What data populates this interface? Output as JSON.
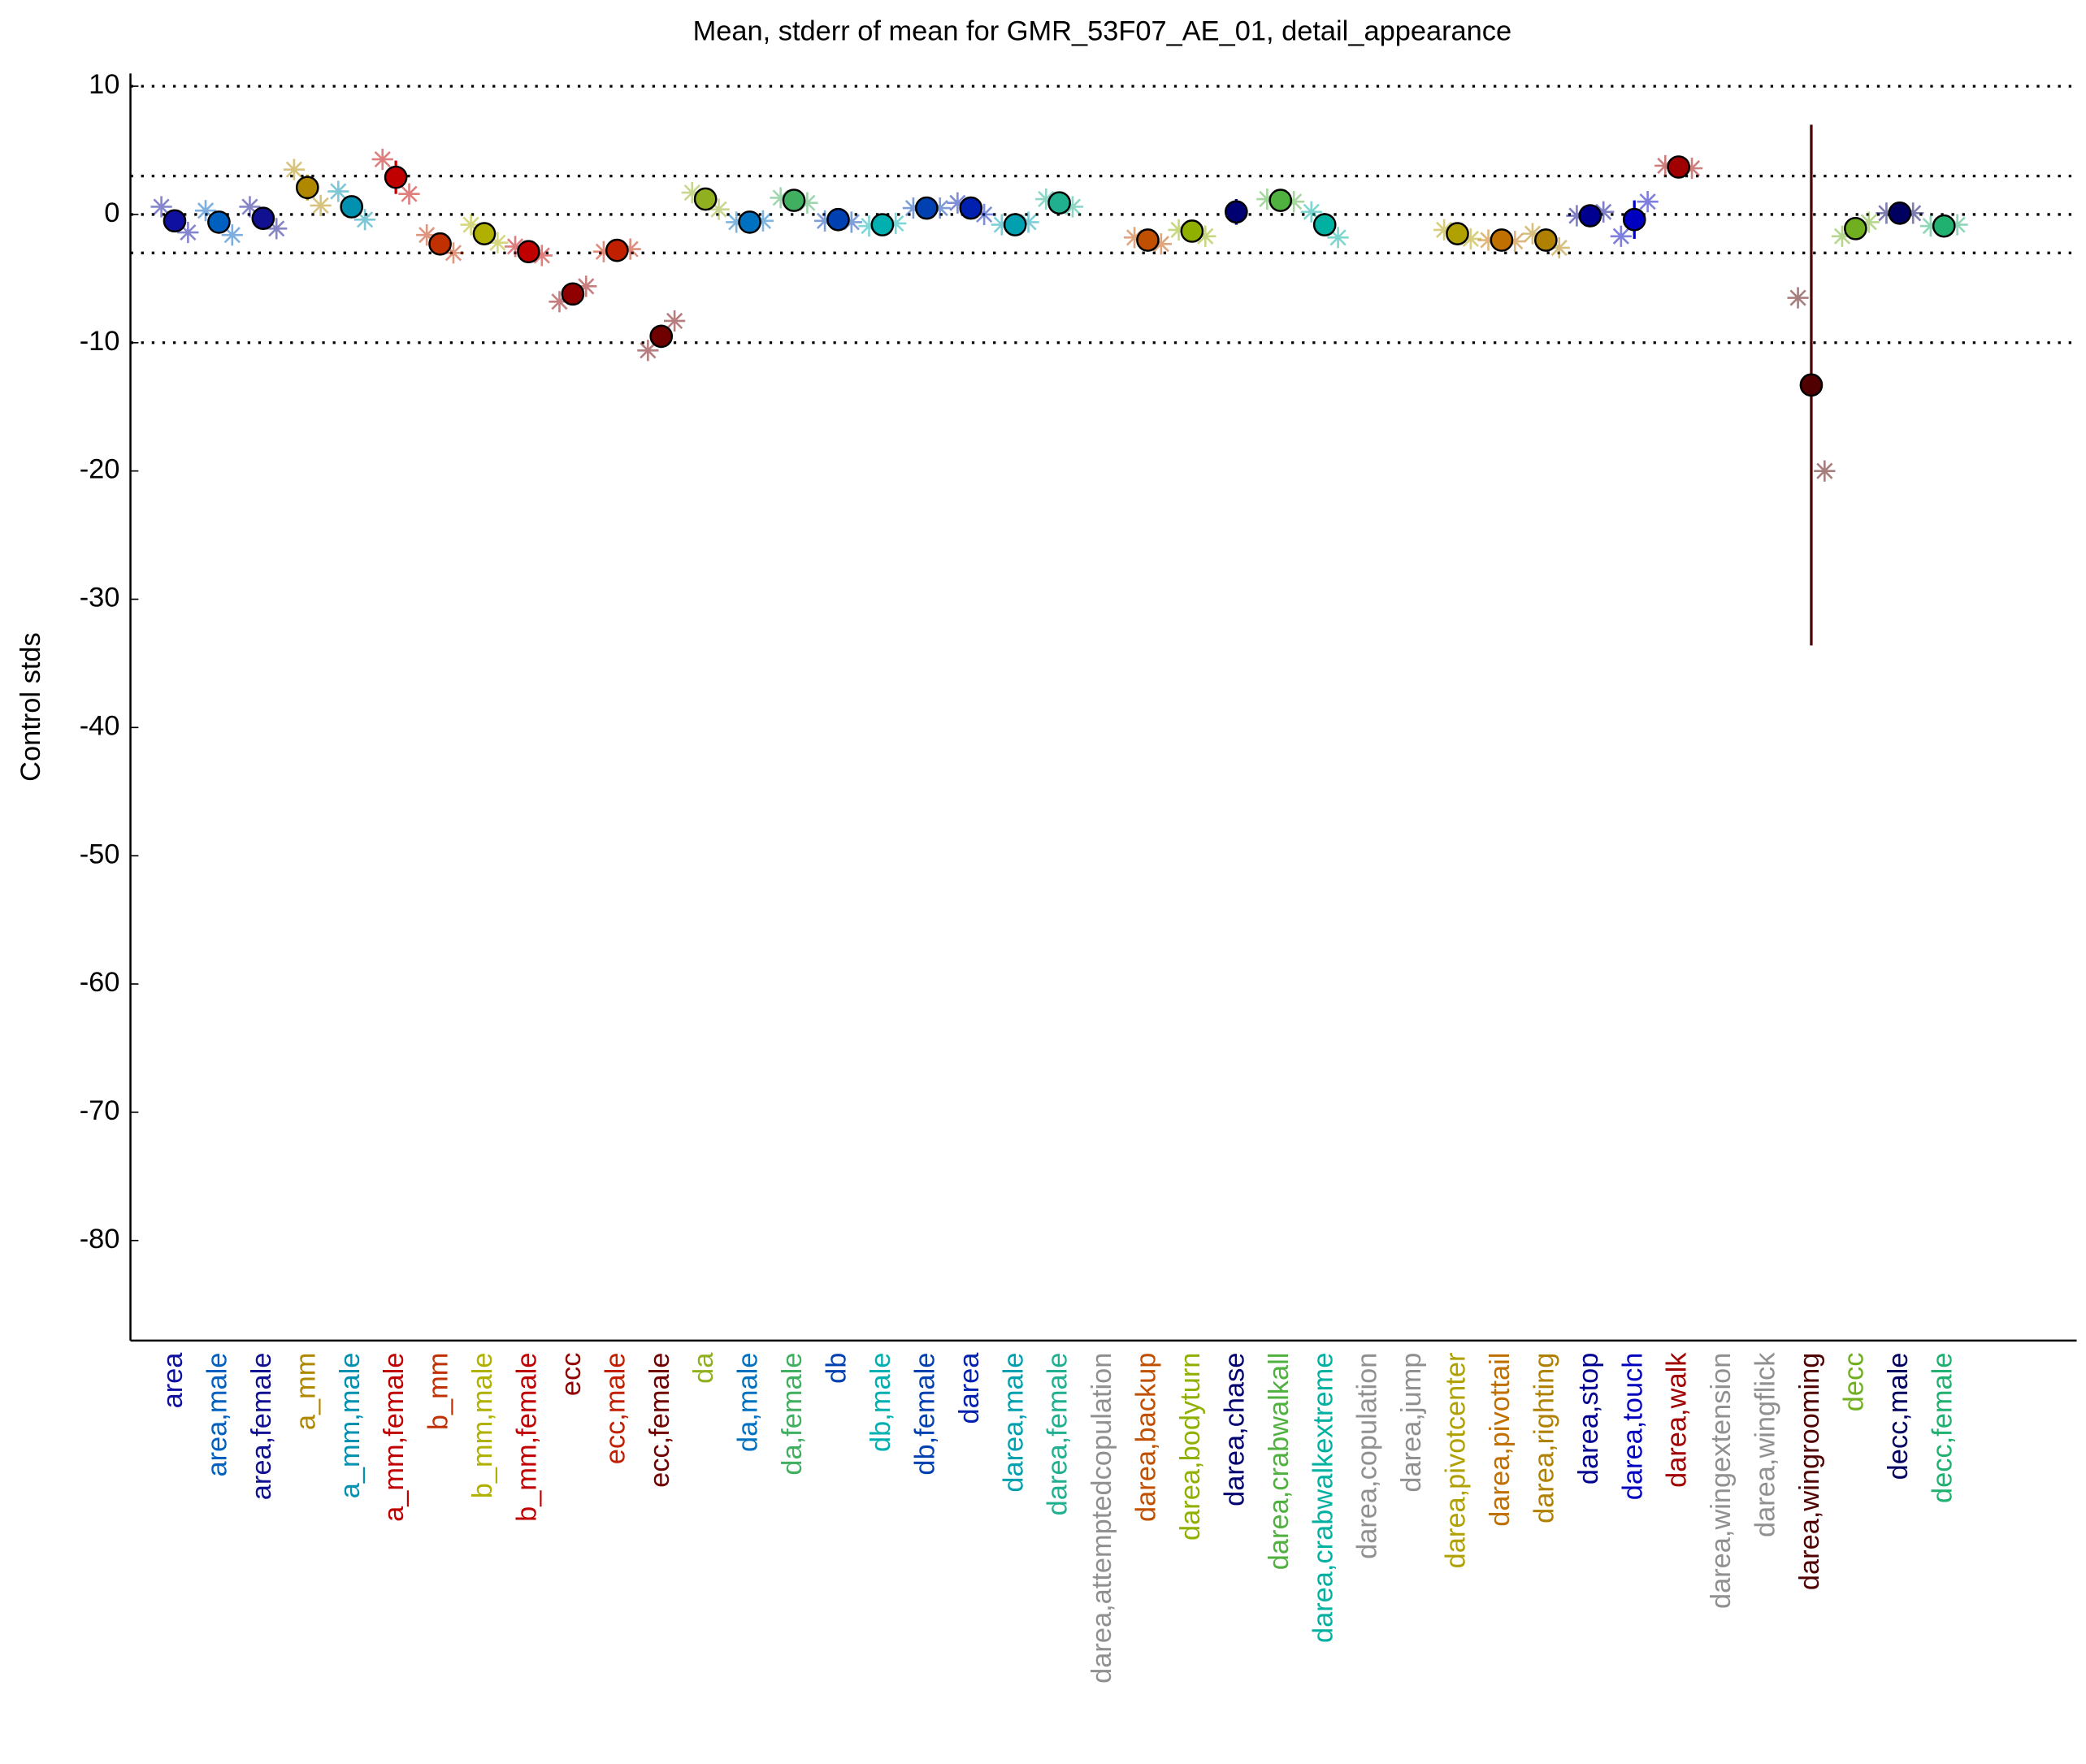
{
  "chart_data": {
    "type": "errorbar",
    "title": "Mean, stderr of mean for GMR_53F07_AE_01, detail_appearance",
    "y_label": "Control stds",
    "categories": [
      "area",
      "area,male",
      "area,female",
      "a_mm",
      "a_mm,male",
      "a_mm,female",
      "b_mm",
      "b_mm,male",
      "b_mm,female",
      "ecc",
      "ecc,male",
      "ecc,female",
      "da",
      "da,male",
      "da,female",
      "db",
      "db,male",
      "db,female",
      "darea",
      "darea,male",
      "darea,female",
      "darea,attemptedcopulation",
      "darea,backup",
      "darea,bodyturn",
      "darea,chase",
      "darea,crabwalkall",
      "darea,crabwalkextreme",
      "darea,copulation",
      "darea,jump",
      "darea,pivotcenter",
      "darea,pivottail",
      "darea,righting",
      "darea,stop",
      "darea,touch",
      "darea,walk",
      "darea,wingextension",
      "darea,wingflick",
      "darea,wingrooming",
      "decc",
      "decc,male",
      "decc,female"
    ],
    "colors": [
      "#1010a0",
      "#0060c0",
      "#101090",
      "#b08800",
      "#0090b0",
      "#c00000",
      "#c03000",
      "#b0b000",
      "#c00000",
      "#900000",
      "#c02000",
      "#700000",
      "#90b020",
      "#0070c0",
      "#40b060",
      "#0040b0",
      "#00b0b0",
      "#0040b0",
      "#0020b0",
      "#00a0b0",
      "#20b090",
      "#909090",
      "#c05000",
      "#90b000",
      "#000070",
      "#50b040",
      "#00b0a0",
      "#909090",
      "#909090",
      "#b0a000",
      "#c07000",
      "#b08000",
      "#000090",
      "#0000c0",
      "#a00000",
      "#909090",
      "#909090",
      "#500000",
      "#70b020",
      "#000060",
      "#20b070"
    ],
    "values": [
      -0.5,
      -0.6,
      -0.3,
      2.1,
      0.6,
      2.9,
      -2.3,
      -1.5,
      -2.9,
      -6.2,
      -2.8,
      -9.5,
      1.2,
      -0.6,
      1.1,
      -0.4,
      -0.8,
      0.5,
      0.5,
      -0.8,
      0.9,
      null,
      -2.0,
      -1.3,
      0.2,
      1.1,
      -0.8,
      null,
      null,
      -1.5,
      -2.0,
      -2.0,
      -0.1,
      -0.4,
      3.7,
      null,
      null,
      -13.3,
      -1.1,
      0.1,
      -0.9
    ],
    "errors": [
      0.6,
      0.5,
      0.5,
      1.0,
      0.5,
      1.3,
      0.4,
      0.4,
      0.4,
      0.5,
      0.3,
      0.9,
      0.6,
      0.3,
      0.3,
      0.5,
      0.3,
      0.3,
      0.8,
      0.3,
      0.3,
      null,
      0.8,
      0.4,
      1.0,
      0.3,
      0.6,
      null,
      null,
      0.4,
      0.3,
      0.5,
      0.4,
      1.5,
      0.3,
      null,
      null,
      20.3,
      0.5,
      0.3,
      0.3
    ],
    "left_values": [
      0.6,
      0.3,
      0.6,
      3.5,
      1.8,
      4.3,
      -1.6,
      -0.8,
      -2.5,
      -6.8,
      -2.9,
      -10.6,
      1.7,
      -0.6,
      1.3,
      -0.5,
      -0.9,
      0.5,
      0.9,
      -0.8,
      1.2,
      null,
      -1.8,
      -1.2,
      null,
      1.2,
      0.2,
      null,
      null,
      -1.2,
      -2.0,
      -1.5,
      -0.1,
      -1.7,
      3.8,
      null,
      null,
      -6.5,
      -1.7,
      0.1,
      -0.9
    ],
    "right_values": [
      -1.4,
      -1.6,
      -1.1,
      0.7,
      -0.4,
      1.6,
      -3.0,
      -2.2,
      -3.2,
      -5.6,
      -2.7,
      -8.3,
      0.4,
      -0.5,
      0.9,
      -0.6,
      -0.7,
      0.5,
      0.0,
      -0.6,
      0.6,
      null,
      -2.3,
      -1.7,
      null,
      1.0,
      -1.8,
      null,
      null,
      -1.9,
      -2.1,
      -2.6,
      0.2,
      1.0,
      3.6,
      null,
      null,
      -20,
      -0.6,
      0.1,
      -0.8
    ],
    "ylim": [
      -87.8,
      11
    ],
    "yticks": [
      10,
      0,
      -10,
      -20,
      -30,
      -40,
      -50,
      -60,
      -70,
      -80
    ],
    "hlines": [
      10,
      3,
      0,
      -3,
      -10
    ]
  }
}
